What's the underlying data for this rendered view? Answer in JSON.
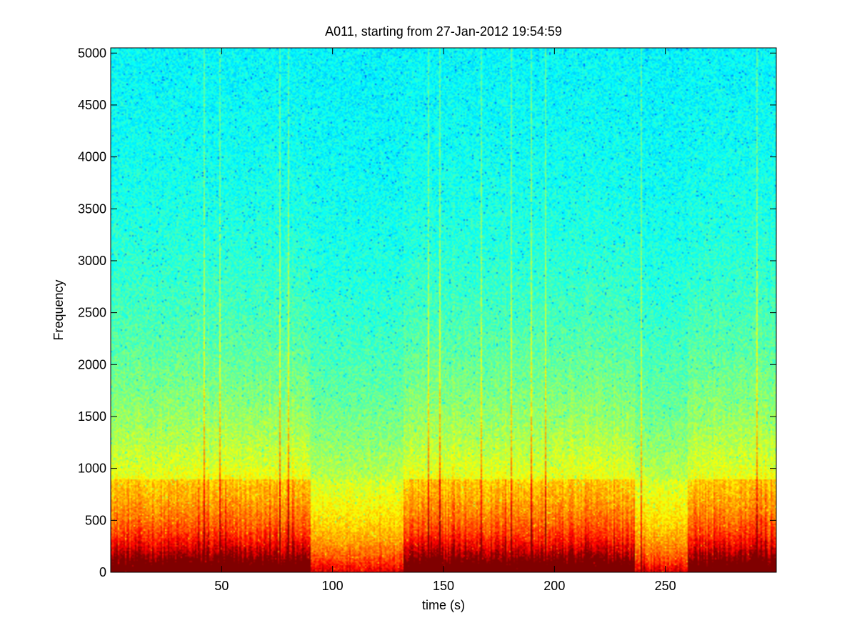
{
  "chart_data": {
    "type": "heatmap",
    "title": "A011, starting from 27-Jan-2012 19:54:59",
    "xlabel": "time (s)",
    "ylabel": "Frequency",
    "xlim": [
      0,
      300
    ],
    "ylim": [
      0,
      5050
    ],
    "x_ticks": [
      50,
      100,
      150,
      200,
      250
    ],
    "y_ticks": [
      0,
      500,
      1000,
      1500,
      2000,
      2500,
      3000,
      3500,
      4000,
      4500,
      5000
    ],
    "x_tick_labels": [
      "50",
      "100",
      "150",
      "200",
      "250"
    ],
    "y_tick_labels": [
      "0",
      "500",
      "1000",
      "1500",
      "2000",
      "2500",
      "3000",
      "3500",
      "4000",
      "4500",
      "5000"
    ],
    "colormap": "jet",
    "colors": {
      "low": "#00e5ee",
      "mid": "#40f0a0",
      "high": "#ffff00",
      "peak": "#ee1010"
    },
    "grid": false,
    "high_energy_segments_s": [
      [
        0,
        90
      ],
      [
        132,
        236
      ],
      [
        260,
        300
      ]
    ],
    "quiet_segments_s": [
      [
        90,
        132
      ],
      [
        236,
        260
      ]
    ],
    "vertical_transients_s": [
      42,
      49,
      76,
      80,
      143,
      148,
      167,
      180,
      189,
      196,
      239,
      291
    ]
  }
}
